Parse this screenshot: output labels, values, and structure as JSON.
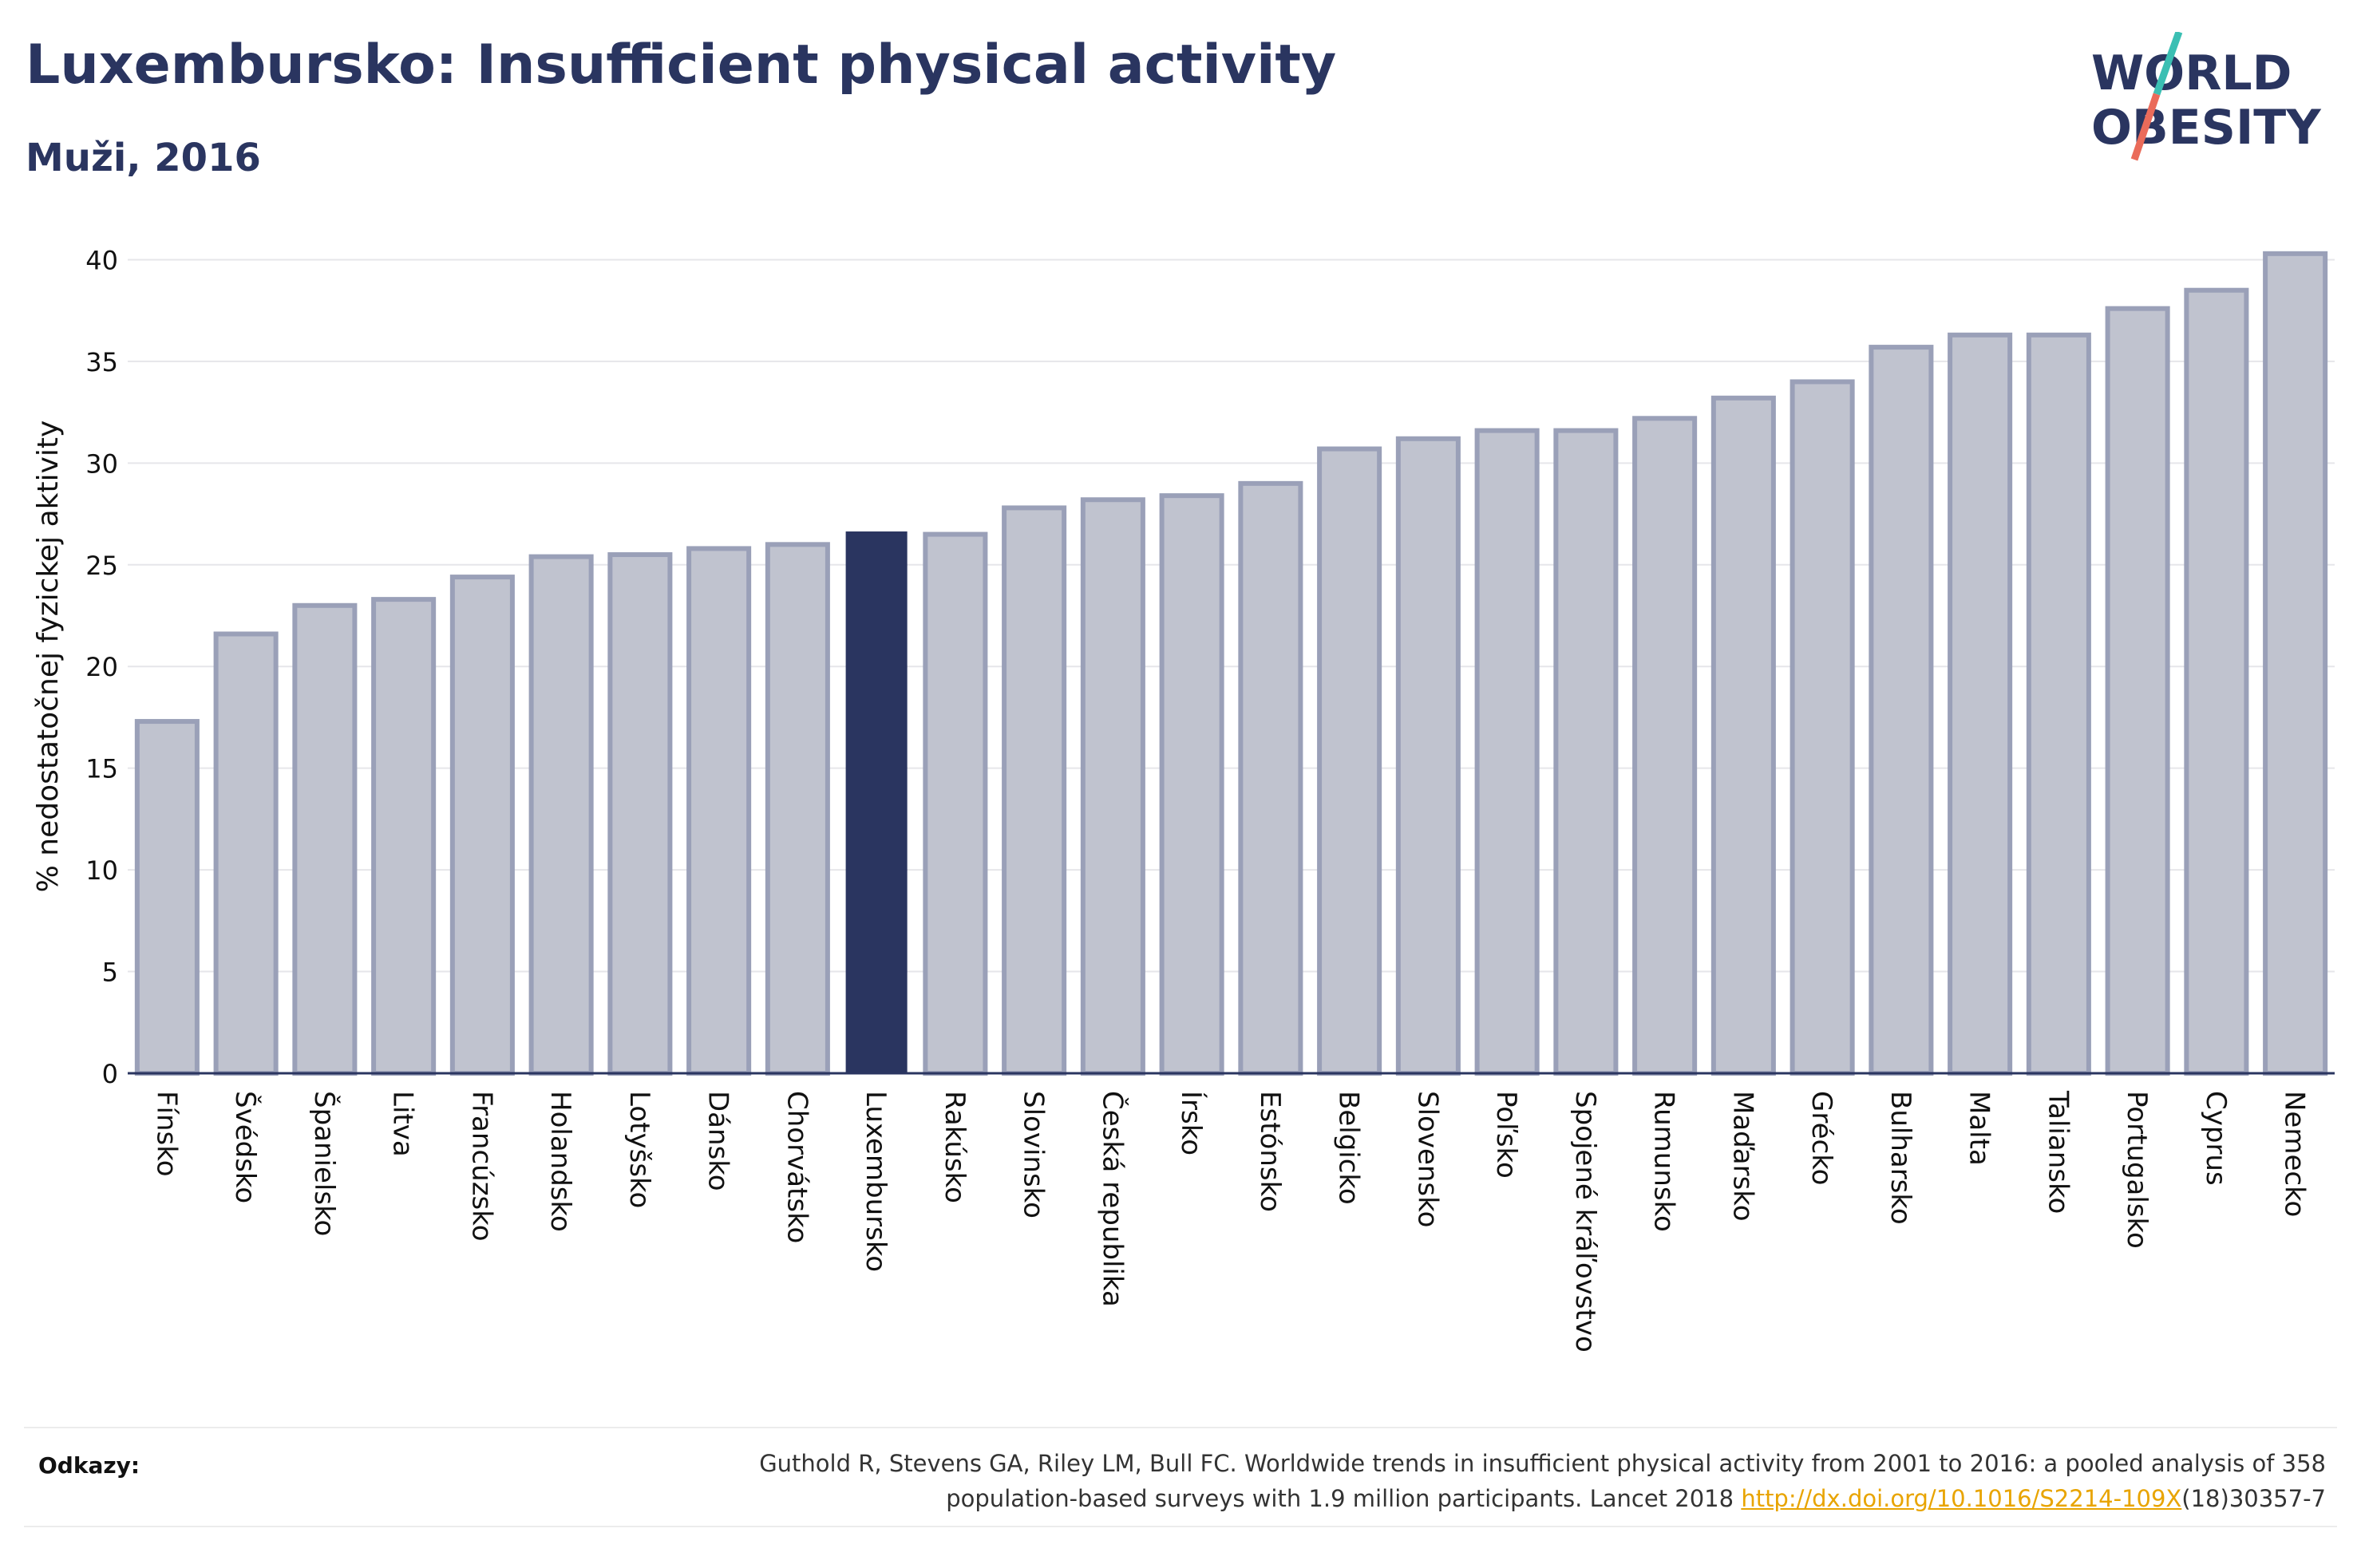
{
  "header": {
    "title": "Luxembursko: Insufficient physical activity",
    "subtitle": "Muži, 2016",
    "logo_line1": "WORLD",
    "logo_line2": "OBESITY"
  },
  "chart_data": {
    "type": "bar",
    "ylabel": "% nedostatočnej fyzickej aktivity",
    "xlabel": "",
    "ylim": [
      0,
      41
    ],
    "yticks": [
      0,
      5,
      10,
      15,
      20,
      25,
      30,
      35,
      40
    ],
    "grid": true,
    "highlight": "Luxembursko",
    "colors": {
      "bar": "#c0c3cf",
      "bar_edge": "#9aa0b8",
      "highlight": "#2a3560"
    },
    "categories": [
      "Fínsko",
      "Švédsko",
      "Španielsko",
      "Litva",
      "Francúzsko",
      "Holandsko",
      "Lotyšsko",
      "Dánsko",
      "Chorvátsko",
      "Luxembursko",
      "Rakúsko",
      "Slovinsko",
      "Česká republika",
      "Írsko",
      "Estónsko",
      "Belgicko",
      "Slovensko",
      "Poľsko",
      "Spojené kráľovstvo",
      "Rumunsko",
      "Maďarsko",
      "Grécko",
      "Bulharsko",
      "Malta",
      "Taliansko",
      "Portugalsko",
      "Cyprus",
      "Nemecko"
    ],
    "values": [
      17.3,
      21.6,
      23.0,
      23.3,
      24.4,
      25.4,
      25.5,
      25.8,
      26.0,
      26.6,
      26.5,
      27.8,
      28.2,
      28.4,
      29.0,
      30.7,
      31.2,
      31.6,
      31.6,
      32.2,
      33.2,
      34.0,
      35.7,
      36.3,
      36.3,
      37.6,
      38.5,
      40.3
    ]
  },
  "references": {
    "label": "Odkazy:",
    "text_line1": "Guthold R, Stevens GA, Riley LM, Bull FC. Worldwide trends in insufficient physical activity from 2001 to 2016: a pooled analysis of 358",
    "text_line2_pre": "population-based surveys with 1.9 million participants. Lancet 2018 ",
    "link": "http://dx.doi.org/10.1016/S2214-109X",
    "text_line2_post": "(18)30357-7"
  }
}
